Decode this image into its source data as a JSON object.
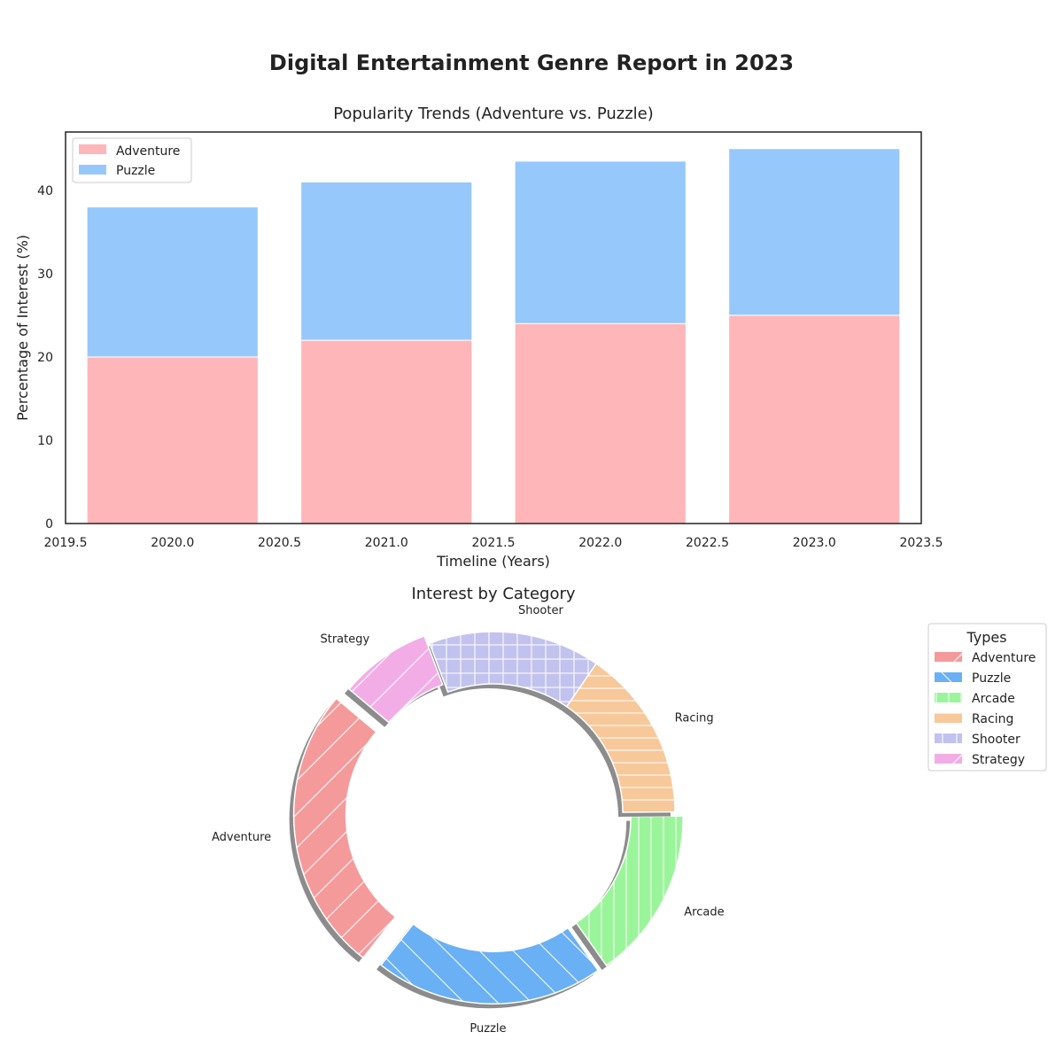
{
  "figure": {
    "title": "Digital Entertainment Genre Report in 2023"
  },
  "chart_data": [
    {
      "type": "bar",
      "stacked": true,
      "title": "Popularity Trends (Adventure vs. Puzzle)",
      "xlabel": "Timeline (Years)",
      "ylabel": "Percentage of Interest (%)",
      "x": [
        2020,
        2021,
        2022,
        2023
      ],
      "series": [
        {
          "name": "Adventure",
          "values": [
            20,
            22,
            24,
            25
          ],
          "color": "#FFB6B9"
        },
        {
          "name": "Puzzle",
          "values": [
            18,
            19,
            19.5,
            20
          ],
          "color": "#96C8FB"
        }
      ],
      "xlim": [
        2019.5,
        2023.5
      ],
      "ylim": [
        0,
        47
      ],
      "xticks": [
        "2019.5",
        "2020.0",
        "2020.5",
        "2021.0",
        "2021.5",
        "2022.0",
        "2022.5",
        "2023.0",
        "2023.5"
      ],
      "yticks": [
        "0",
        "10",
        "20",
        "30",
        "40"
      ],
      "legend": "top-left",
      "grid": false
    },
    {
      "type": "pie",
      "donut": true,
      "title": "Interest by Category",
      "legend_title": "Types",
      "legend": "right",
      "categories": [
        "Adventure",
        "Puzzle",
        "Arcade",
        "Racing",
        "Shooter",
        "Strategy"
      ],
      "values": [
        25,
        20,
        15,
        15,
        15,
        8
      ],
      "colors": [
        "#F59A9A",
        "#6AB0F5",
        "#9AF59A",
        "#F7C89A",
        "#C2C2EF",
        "#F2ADE6"
      ],
      "explode": [
        0.1,
        0.05,
        0.05,
        0,
        0,
        0.05
      ]
    }
  ]
}
